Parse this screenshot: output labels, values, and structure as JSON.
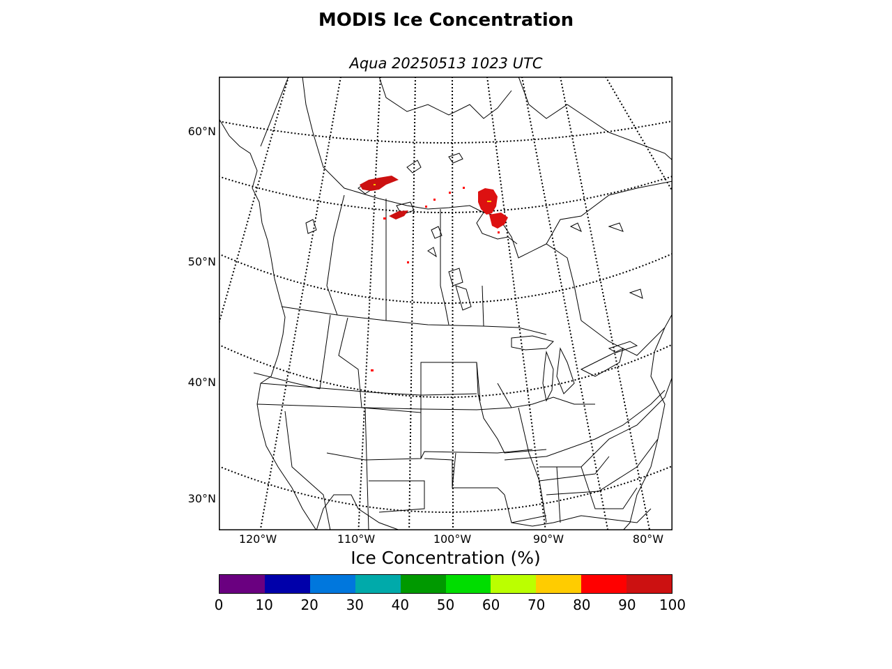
{
  "title": "MODIS Ice Concentration",
  "subtitle": "Aqua 20250513 1023 UTC",
  "map": {
    "latitude_labels": [
      "60°N",
      "50°N",
      "40°N",
      "30°N"
    ],
    "longitude_labels": [
      "120°W",
      "110°W",
      "100°W",
      "90°W",
      "80°W"
    ],
    "region": "Central North America (Canada / United States)",
    "ice_color": "#cc1111"
  },
  "colorbar": {
    "label": "Ice Concentration (%)",
    "ticks": [
      "0",
      "10",
      "20",
      "30",
      "40",
      "50",
      "60",
      "70",
      "80",
      "90",
      "100"
    ],
    "colors": [
      "#6a0080",
      "#0000aa",
      "#0077dd",
      "#00aaaa",
      "#009900",
      "#00dd00",
      "#bbff00",
      "#ffcc00",
      "#ff0000",
      "#cc1111"
    ]
  }
}
